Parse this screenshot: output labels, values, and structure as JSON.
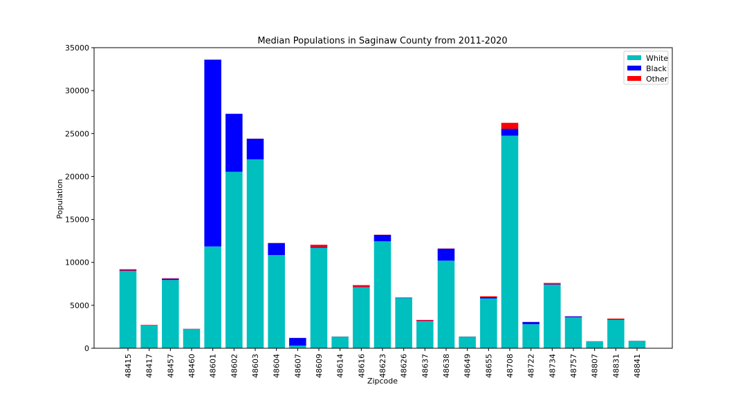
{
  "chart_data": {
    "type": "bar",
    "stacked": true,
    "title": "Median Populations in Saginaw County from 2011-2020",
    "xlabel": "Zipcode",
    "ylabel": "Population",
    "ylim": [
      0,
      35000
    ],
    "yticks": [
      0,
      5000,
      10000,
      15000,
      20000,
      25000,
      30000,
      35000
    ],
    "grid": false,
    "legend_position": "top-right",
    "categories": [
      "48415",
      "48417",
      "48457",
      "48460",
      "48601",
      "48602",
      "48603",
      "48604",
      "48607",
      "48609",
      "48614",
      "48616",
      "48623",
      "48626",
      "48637",
      "48638",
      "48649",
      "48655",
      "48708",
      "48722",
      "48734",
      "48757",
      "48807",
      "48831",
      "48841"
    ],
    "series": [
      {
        "name": "White",
        "color": "#00bfbf",
        "values": [
          9000,
          2650,
          7950,
          2250,
          11850,
          20550,
          22000,
          10850,
          300,
          11700,
          1350,
          7100,
          12450,
          5850,
          3150,
          10200,
          1350,
          5800,
          24750,
          2800,
          7400,
          3600,
          800,
          3300,
          850
        ]
      },
      {
        "name": "Black",
        "color": "#0000ff",
        "values": [
          50,
          20,
          150,
          10,
          21750,
          6750,
          2400,
          1400,
          900,
          100,
          10,
          50,
          750,
          50,
          50,
          1400,
          10,
          150,
          800,
          250,
          50,
          100,
          10,
          50,
          10
        ]
      },
      {
        "name": "Other",
        "color": "#ff0000",
        "values": [
          150,
          50,
          50,
          10,
          10,
          10,
          10,
          10,
          10,
          250,
          10,
          200,
          20,
          20,
          100,
          20,
          10,
          100,
          700,
          20,
          150,
          20,
          10,
          100,
          10
        ]
      }
    ]
  }
}
